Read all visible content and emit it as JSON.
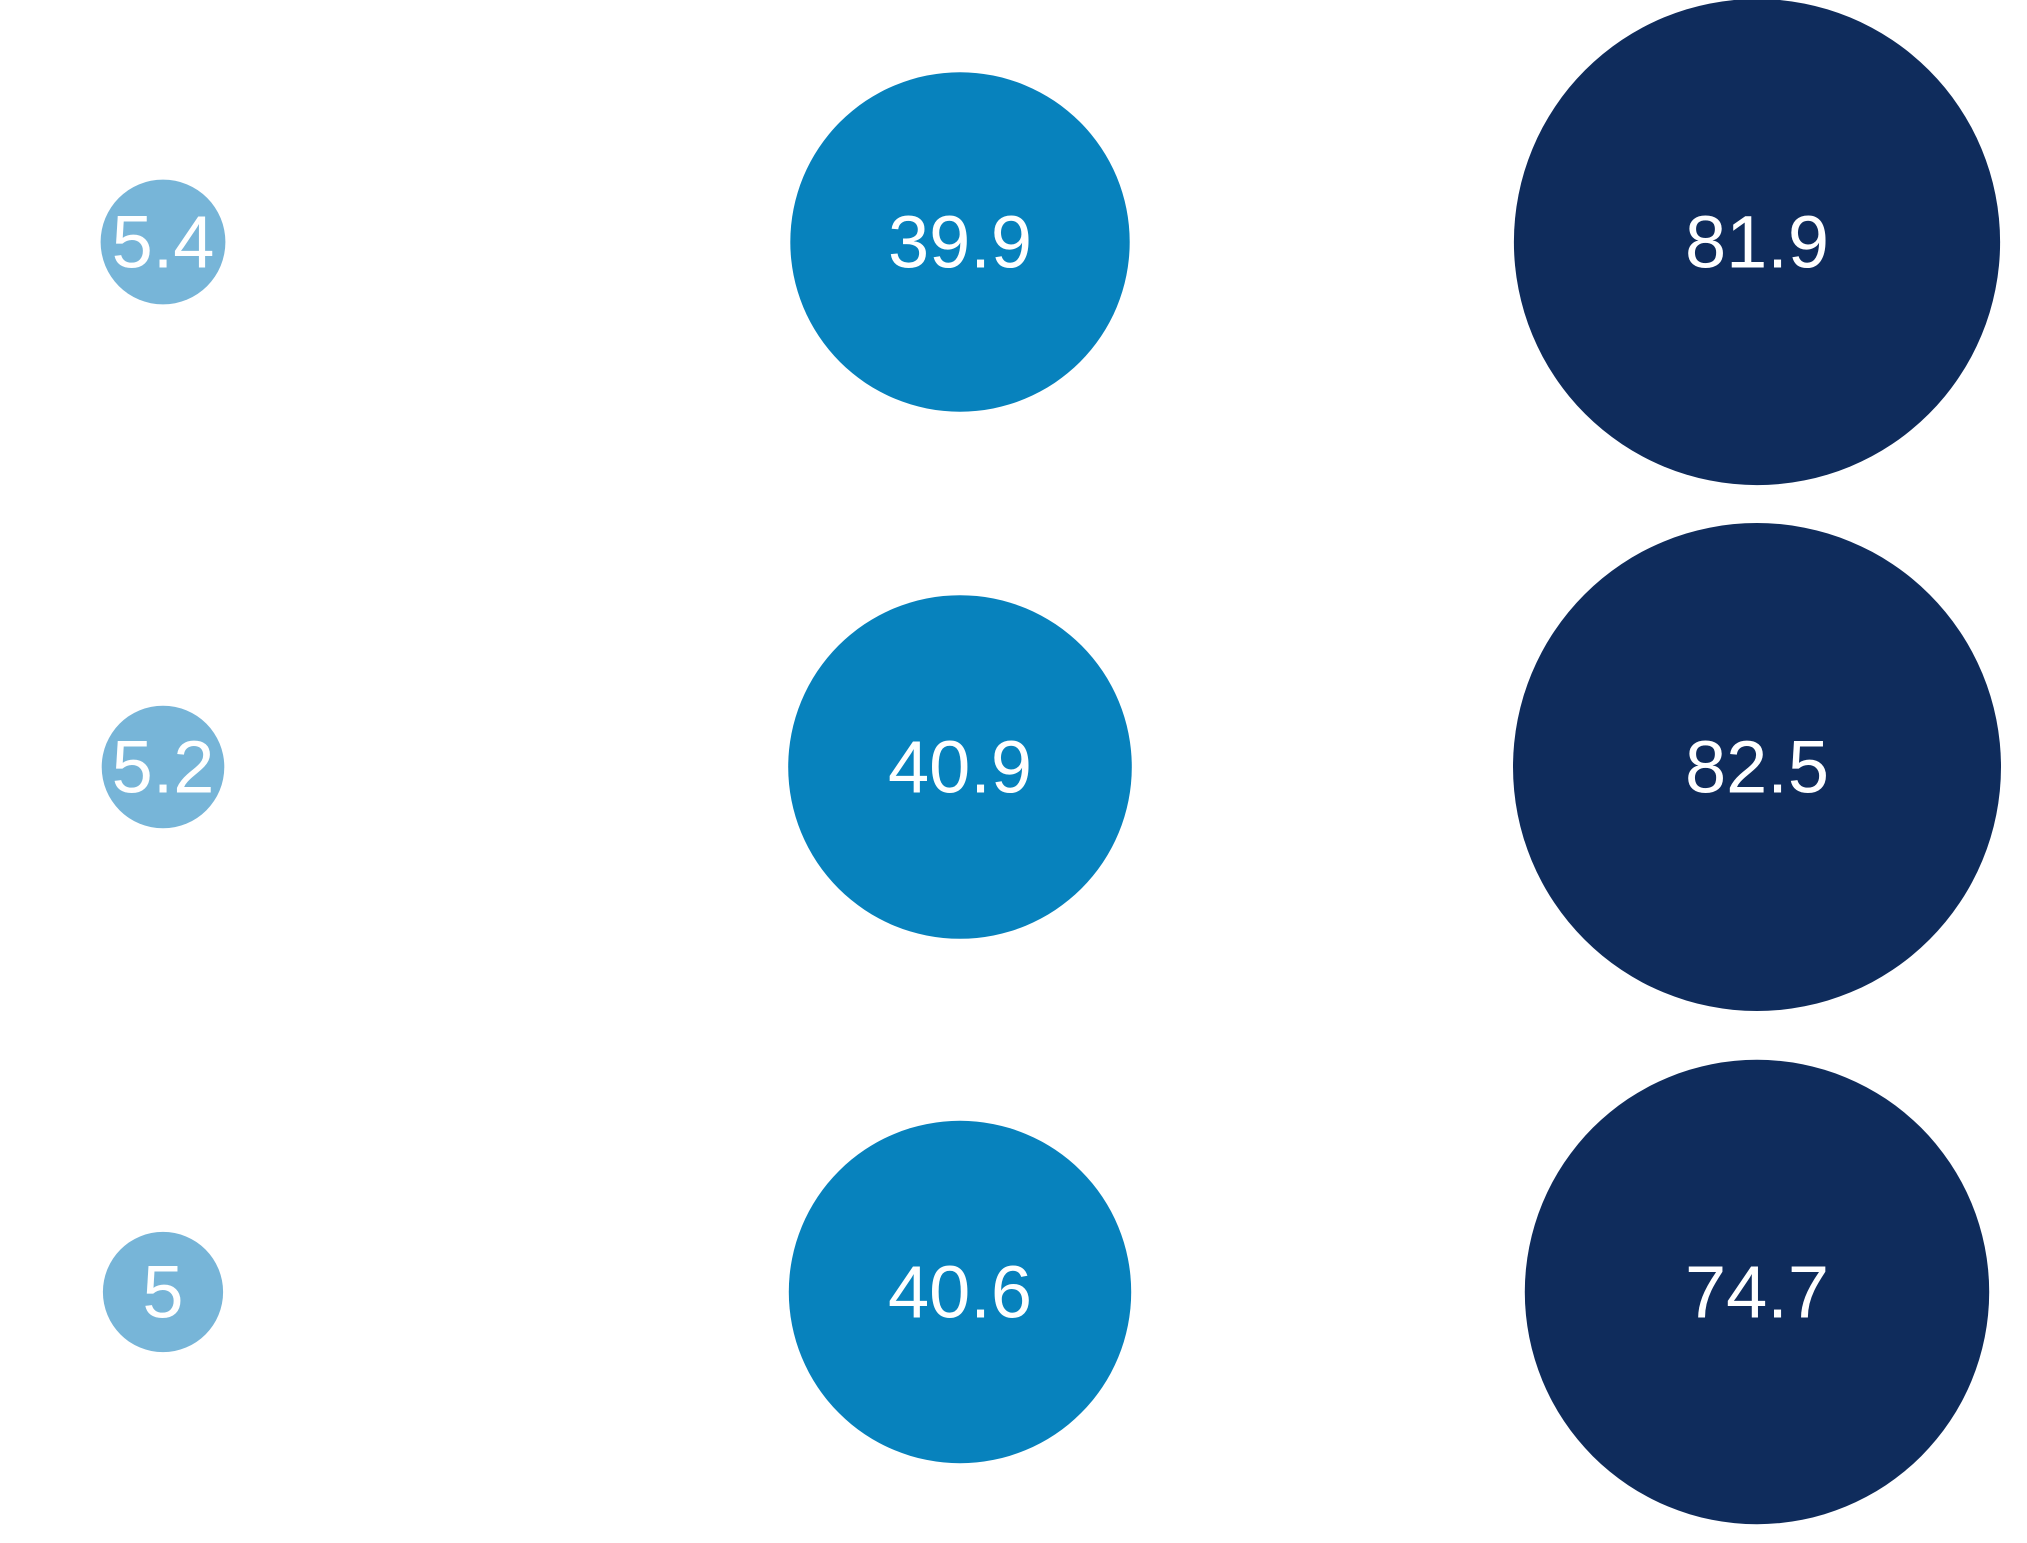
{
  "chart_data": {
    "type": "bubble",
    "title": "",
    "xlabel": "",
    "ylabel": "",
    "grid": false,
    "legend": "none",
    "series": [
      {
        "color": "#77b5d8",
        "values": [
          5.4,
          5.2,
          5
        ]
      },
      {
        "color": "#0782bd",
        "values": [
          39.9,
          40.9,
          40.6
        ]
      },
      {
        "color": "#0f2c5c",
        "values": [
          81.9,
          82.5,
          74.7
        ]
      }
    ]
  }
}
